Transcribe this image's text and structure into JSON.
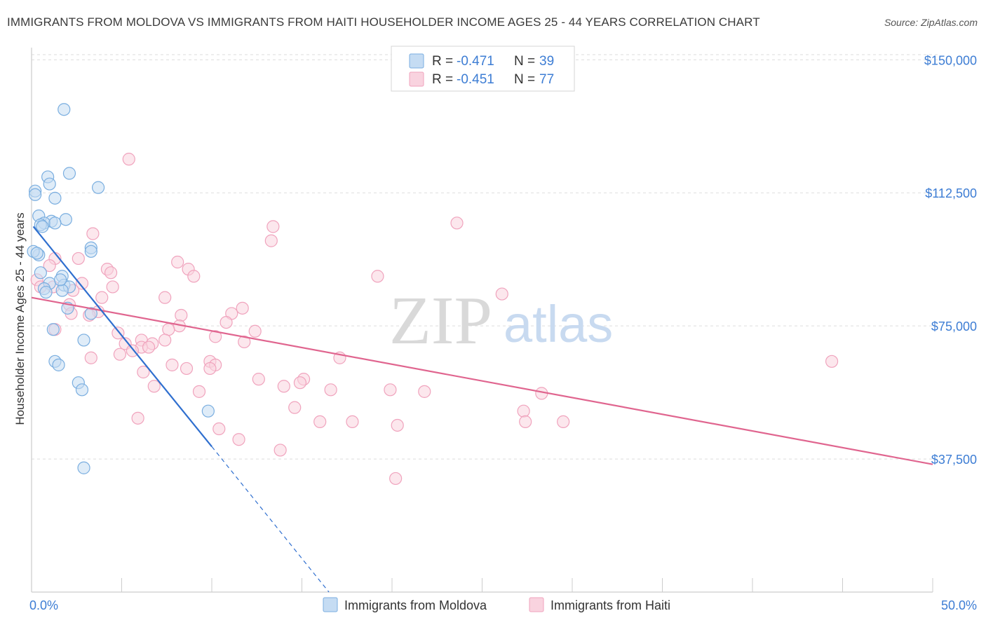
{
  "header": {
    "title": "IMMIGRANTS FROM MOLDOVA VS IMMIGRANTS FROM HAITI HOUSEHOLDER INCOME AGES 25 - 44 YEARS CORRELATION CHART",
    "source": "Source: ZipAtlas.com"
  },
  "watermark": {
    "zip": "ZIP",
    "atlas": "atlas"
  },
  "legend_top": [
    {
      "r_label": "R =",
      "r_value": "-0.471",
      "n_label": "N =",
      "n_value": "39"
    },
    {
      "r_label": "R =",
      "r_value": "-0.451",
      "n_label": "N =",
      "n_value": "77"
    }
  ],
  "colors": {
    "moldova": "#7aaee0",
    "moldova_fill": "#c5dcf3",
    "moldova_line": "#2f6fcf",
    "haiti": "#f0a3bd",
    "haiti_fill": "#f9d3df",
    "haiti_line": "#e0658f",
    "value_text": "#3d7dd4",
    "grid": "#dddddd"
  },
  "chart_data": {
    "type": "scatter",
    "xlabel": "",
    "ylabel": "Householder Income Ages 25 - 44 years",
    "xlim": [
      0,
      50
    ],
    "ylim": [
      0,
      155000
    ],
    "x_ticks": [
      "0.0%",
      "50.0%"
    ],
    "y_ticks": [
      {
        "value": 37500,
        "label": "$37,500"
      },
      {
        "value": 75000,
        "label": "$75,000"
      },
      {
        "value": 112500,
        "label": "$112,500"
      },
      {
        "value": 150000,
        "label": "$150,000"
      }
    ],
    "grid": "horizontal dashed",
    "legend_position": "bottom-center",
    "series": [
      {
        "name": "Immigrants from Moldova",
        "r": -0.471,
        "n": 39,
        "trend": {
          "x0": 0.1,
          "y0": 103000,
          "x1": 10.0,
          "y1": 41000,
          "dash_to_x": 16.5,
          "dash_to_y": 0
        },
        "points": [
          [
            1.8,
            136000
          ],
          [
            2.1,
            118000
          ],
          [
            0.9,
            117000
          ],
          [
            1.0,
            115000
          ],
          [
            3.7,
            114000
          ],
          [
            0.2,
            113000
          ],
          [
            0.2,
            112000
          ],
          [
            1.3,
            111000
          ],
          [
            0.4,
            106000
          ],
          [
            1.9,
            105000
          ],
          [
            1.1,
            104500
          ],
          [
            0.7,
            104000
          ],
          [
            1.3,
            104000
          ],
          [
            0.5,
            103500
          ],
          [
            0.6,
            103000
          ],
          [
            3.3,
            97000
          ],
          [
            3.3,
            96000
          ],
          [
            0.4,
            95000
          ],
          [
            0.1,
            96000
          ],
          [
            1.7,
            89000
          ],
          [
            1.0,
            87000
          ],
          [
            1.8,
            86500
          ],
          [
            2.1,
            86000
          ],
          [
            0.7,
            85500
          ],
          [
            1.7,
            85000
          ],
          [
            0.8,
            84500
          ],
          [
            2.0,
            80000
          ],
          [
            3.3,
            78500
          ],
          [
            1.2,
            74000
          ],
          [
            2.9,
            71000
          ],
          [
            1.3,
            65000
          ],
          [
            1.5,
            64000
          ],
          [
            2.6,
            59000
          ],
          [
            2.8,
            57000
          ],
          [
            9.8,
            51000
          ],
          [
            2.9,
            35000
          ],
          [
            0.3,
            95500
          ],
          [
            0.5,
            90000
          ],
          [
            1.6,
            88000
          ]
        ]
      },
      {
        "name": "Immigrants from Haiti",
        "r": -0.451,
        "n": 77,
        "trend": {
          "x0": 0.0,
          "y0": 83000,
          "x1": 50.0,
          "y1": 36000
        },
        "points": [
          [
            5.4,
            122000
          ],
          [
            23.6,
            104000
          ],
          [
            13.4,
            103000
          ],
          [
            13.3,
            99000
          ],
          [
            3.4,
            101000
          ],
          [
            2.6,
            94000
          ],
          [
            1.3,
            94000
          ],
          [
            1.0,
            92000
          ],
          [
            8.1,
            93000
          ],
          [
            4.2,
            91000
          ],
          [
            4.4,
            90000
          ],
          [
            8.7,
            91000
          ],
          [
            9.0,
            89000
          ],
          [
            19.2,
            89000
          ],
          [
            0.3,
            88000
          ],
          [
            2.8,
            87000
          ],
          [
            0.5,
            86000
          ],
          [
            1.2,
            86000
          ],
          [
            4.5,
            86000
          ],
          [
            2.3,
            85000
          ],
          [
            3.9,
            83000
          ],
          [
            7.4,
            83000
          ],
          [
            26.1,
            84000
          ],
          [
            2.1,
            81000
          ],
          [
            11.7,
            80000
          ],
          [
            3.7,
            79000
          ],
          [
            3.2,
            78000
          ],
          [
            11.1,
            78500
          ],
          [
            8.3,
            78000
          ],
          [
            10.8,
            76000
          ],
          [
            8.2,
            75000
          ],
          [
            7.6,
            74000
          ],
          [
            1.3,
            74000
          ],
          [
            12.4,
            73500
          ],
          [
            4.8,
            73000
          ],
          [
            10.2,
            72000
          ],
          [
            6.1,
            71000
          ],
          [
            5.2,
            70000
          ],
          [
            7.4,
            71000
          ],
          [
            11.8,
            70500
          ],
          [
            6.7,
            70000
          ],
          [
            6.1,
            69000
          ],
          [
            5.6,
            68000
          ],
          [
            6.5,
            69000
          ],
          [
            4.9,
            67000
          ],
          [
            3.3,
            66000
          ],
          [
            17.1,
            66000
          ],
          [
            9.9,
            65000
          ],
          [
            7.8,
            64000
          ],
          [
            10.2,
            64000
          ],
          [
            8.6,
            63000
          ],
          [
            9.9,
            63000
          ],
          [
            6.2,
            62000
          ],
          [
            12.6,
            60000
          ],
          [
            15.1,
            60000
          ],
          [
            14.9,
            59000
          ],
          [
            6.8,
            58000
          ],
          [
            14.0,
            58000
          ],
          [
            16.6,
            57000
          ],
          [
            9.3,
            56500
          ],
          [
            19.9,
            57000
          ],
          [
            21.8,
            56500
          ],
          [
            28.3,
            56000
          ],
          [
            44.4,
            65000
          ],
          [
            27.3,
            51000
          ],
          [
            14.6,
            52000
          ],
          [
            5.9,
            49000
          ],
          [
            16.0,
            48000
          ],
          [
            17.8,
            48000
          ],
          [
            10.4,
            46000
          ],
          [
            20.3,
            47000
          ],
          [
            27.4,
            48000
          ],
          [
            29.5,
            48000
          ],
          [
            11.5,
            43000
          ],
          [
            13.8,
            40000
          ],
          [
            20.2,
            32000
          ],
          [
            2.2,
            78500
          ]
        ]
      }
    ]
  }
}
